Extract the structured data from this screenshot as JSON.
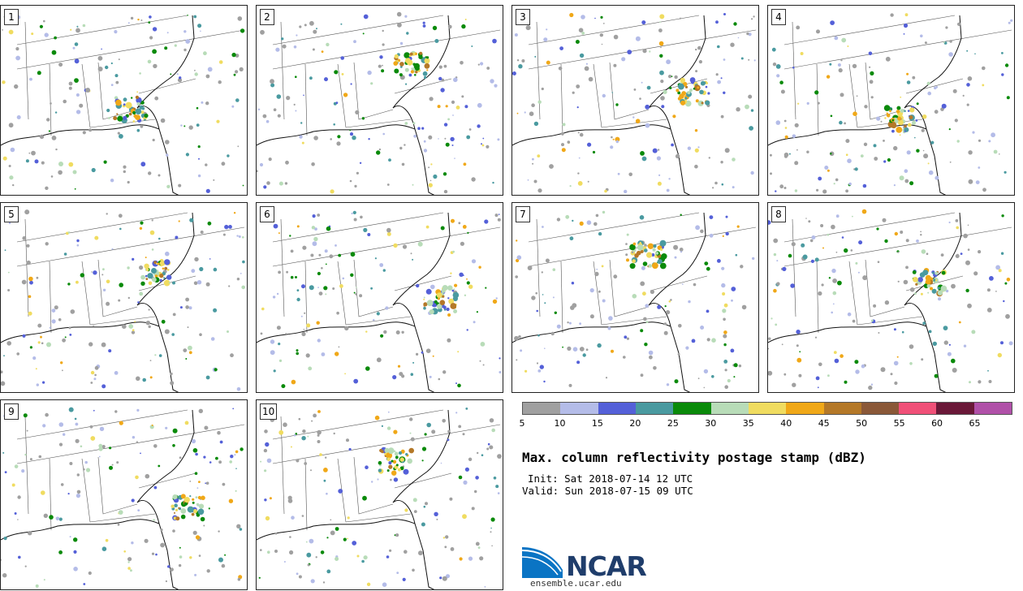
{
  "panels": [
    {
      "label": "1"
    },
    {
      "label": "2"
    },
    {
      "label": "3"
    },
    {
      "label": "4"
    },
    {
      "label": "5"
    },
    {
      "label": "6"
    },
    {
      "label": "7"
    },
    {
      "label": "8"
    },
    {
      "label": "9"
    },
    {
      "label": "10"
    }
  ],
  "colorbar": {
    "colors": [
      "#a0a0a0",
      "#b4bce8",
      "#5460d8",
      "#4a9aa0",
      "#0a8a0a",
      "#b8dcb8",
      "#f0dc60",
      "#f0a818",
      "#b47828",
      "#8a5838",
      "#f05078",
      "#6a1838",
      "#b050a8"
    ],
    "ticks": [
      "5",
      "10",
      "15",
      "20",
      "25",
      "30",
      "35",
      "40",
      "45",
      "50",
      "55",
      "60",
      "65"
    ]
  },
  "title": "Max. column reflectivity postage stamp (dBZ)",
  "init": "Init: Sat 2018-07-14 12 UTC",
  "valid": "Valid: Sun 2018-07-15 09 UTC",
  "logo": {
    "text": "NCAR",
    "site": "ensemble.ucar.edu"
  }
}
